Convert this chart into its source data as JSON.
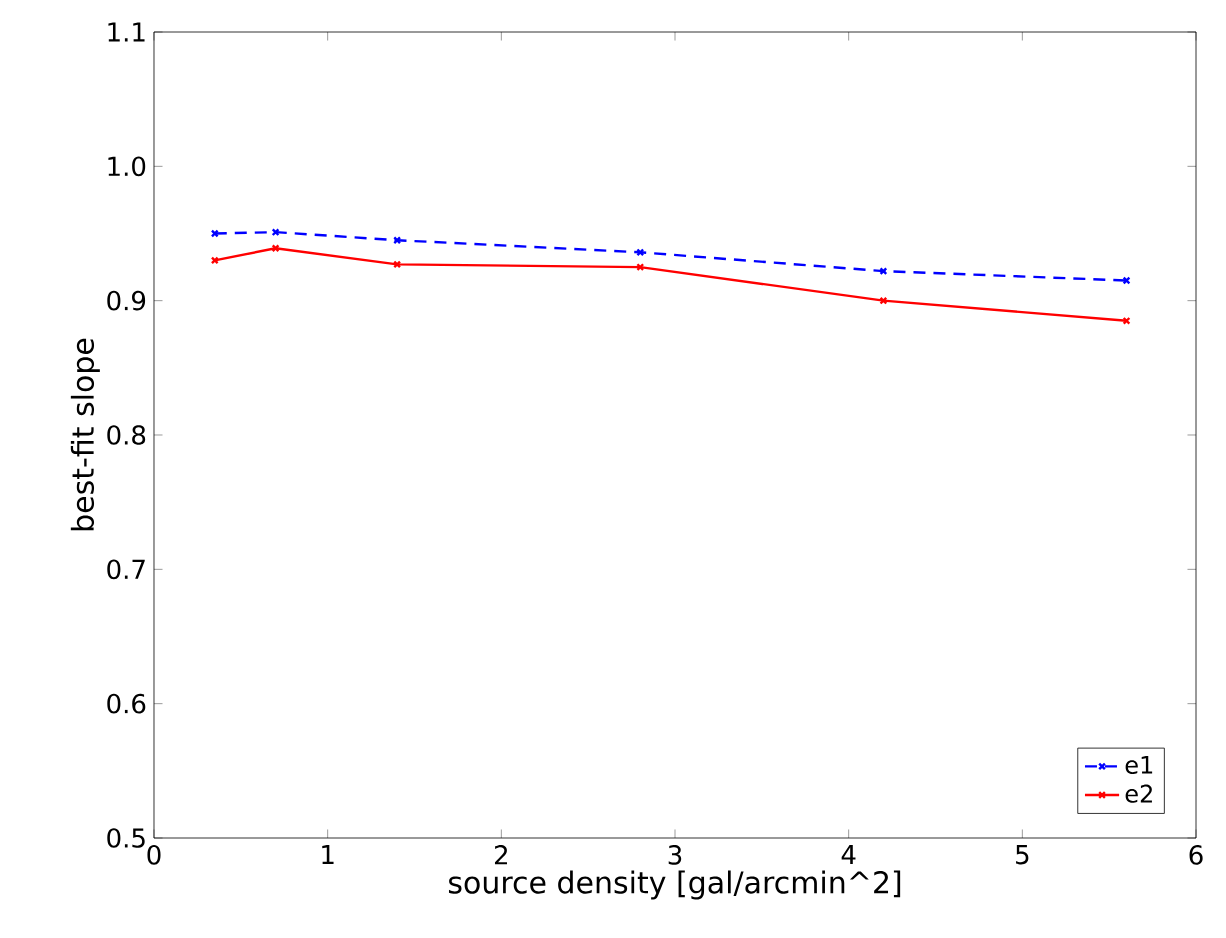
{
  "chart_data": {
    "type": "line",
    "xlabel": "source density [gal/arcmin^2]",
    "ylabel": "best-fit slope",
    "x": [
      0.35,
      0.7,
      1.4,
      2.8,
      4.2,
      5.6
    ],
    "series": [
      {
        "name": "e1",
        "color": "#0000ff",
        "line_style": "dashed",
        "values": [
          0.95,
          0.951,
          0.945,
          0.936,
          0.922,
          0.915
        ]
      },
      {
        "name": "e2",
        "color": "#ff0000",
        "line_style": "solid",
        "values": [
          0.93,
          0.939,
          0.927,
          0.925,
          0.9,
          0.885
        ]
      }
    ],
    "marker": "cross",
    "xlim": [
      0,
      6
    ],
    "xticks": [
      0,
      1,
      2,
      3,
      4,
      5,
      6
    ],
    "ylim": [
      0.5,
      1.1
    ],
    "yticks": [
      {
        "value": 0.5,
        "label": "0.5"
      },
      {
        "value": 0.6,
        "label": "0.6"
      },
      {
        "value": 0.7,
        "label": "0.7"
      },
      {
        "value": 0.8,
        "label": "0.8"
      },
      {
        "value": 0.9,
        "label": "0.9"
      },
      {
        "value": 1.0,
        "label": "1.0"
      },
      {
        "value": 1.1,
        "label": "1.1"
      }
    ],
    "legend": "bottom right",
    "grid": false
  }
}
